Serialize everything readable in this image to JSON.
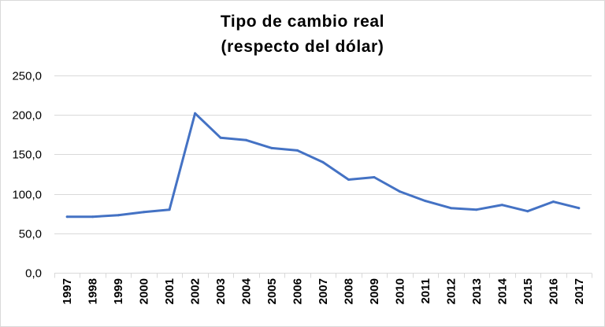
{
  "chart_data": {
    "type": "line",
    "title_lines": [
      "Tipo de cambio real",
      "(respecto del dólar)"
    ],
    "xlabel": "",
    "ylabel": "",
    "ylim": [
      0,
      250
    ],
    "y_ticks": [
      0,
      50,
      100,
      150,
      200,
      250
    ],
    "y_tick_labels": [
      "0,0",
      "50,0",
      "100,0",
      "150,0",
      "200,0",
      "250,0"
    ],
    "grid": true,
    "legend": "none",
    "line_color": "#4472C4",
    "categories": [
      "1997",
      "1998",
      "1999",
      "2000",
      "2001",
      "2002",
      "2003",
      "2004",
      "2005",
      "2006",
      "2007",
      "2008",
      "2009",
      "2010",
      "2011",
      "2012",
      "2013",
      "2014",
      "2015",
      "2016",
      "2017"
    ],
    "series": [
      {
        "values": [
          71,
          71,
          73,
          77,
          80,
          202,
          171,
          168,
          158,
          155,
          140,
          118,
          121,
          103,
          91,
          82,
          80,
          86,
          78,
          90,
          82
        ]
      }
    ]
  }
}
